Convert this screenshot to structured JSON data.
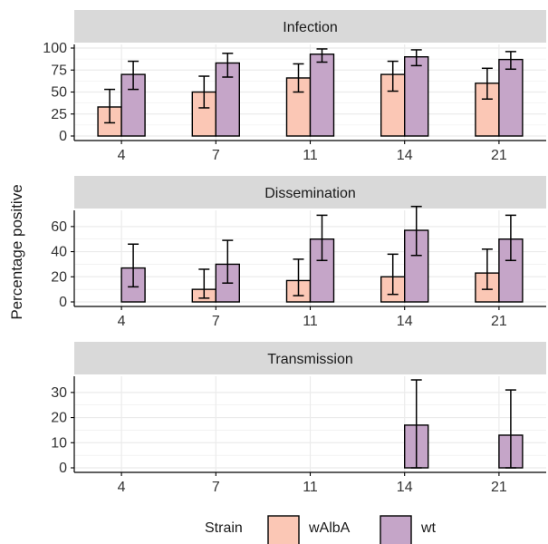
{
  "colors": {
    "wAlbA": "#FBC7B5",
    "wt": "#C5A5C8",
    "strip": "#D9D9D9",
    "grid": "#EBEBEB",
    "axis": "#000000"
  },
  "chart_data": {
    "type": "bar",
    "ylabel": "Percentage positive",
    "xlabel": "",
    "categories": [
      "4",
      "7",
      "11",
      "14",
      "21"
    ],
    "legend": {
      "title": "Strain",
      "position": "bottom",
      "items": [
        "wAlbA",
        "wt"
      ]
    },
    "grid": true,
    "panels": [
      {
        "title": "Infection",
        "ylim": [
          0,
          100
        ],
        "yticks": [
          0,
          25,
          50,
          75,
          100
        ],
        "series": [
          {
            "name": "wAlbA",
            "values": [
              33,
              50,
              66,
              70,
              60
            ],
            "err_low": [
              15,
              32,
              50,
              51,
              42
            ],
            "err_high": [
              53,
              68,
              82,
              85,
              77
            ]
          },
          {
            "name": "wt",
            "values": [
              70,
              83,
              93,
              90,
              87
            ],
            "err_low": [
              53,
              67,
              84,
              80,
              76
            ],
            "err_high": [
              85,
              94,
              99,
              98,
              96
            ]
          }
        ]
      },
      {
        "title": "Dissemination",
        "ylim": [
          0,
          70
        ],
        "yticks": [
          0,
          20,
          40,
          60
        ],
        "series": [
          {
            "name": "wAlbA",
            "values": [
              0,
              10,
              17,
              20,
              23
            ],
            "err_low": [
              0,
              3,
              5,
              6,
              10
            ],
            "err_high": [
              0,
              26,
              34,
              38,
              42
            ]
          },
          {
            "name": "wt",
            "values": [
              27,
              30,
              50,
              57,
              50
            ],
            "err_low": [
              12,
              15,
              33,
              37,
              33
            ],
            "err_high": [
              46,
              49,
              69,
              76,
              69
            ]
          }
        ]
      },
      {
        "title": "Transmission",
        "ylim": [
          0,
          35
        ],
        "yticks": [
          0,
          10,
          20,
          30
        ],
        "series": [
          {
            "name": "wAlbA",
            "values": [
              0,
              0,
              0,
              0,
              0
            ],
            "err_low": [
              0,
              0,
              0,
              0,
              0
            ],
            "err_high": [
              0,
              0,
              0,
              0,
              0
            ]
          },
          {
            "name": "wt",
            "values": [
              0,
              0,
              0,
              17,
              13
            ],
            "err_low": [
              0,
              0,
              0,
              0,
              0
            ],
            "err_high": [
              0,
              0,
              0,
              35,
              31
            ]
          }
        ]
      }
    ]
  }
}
